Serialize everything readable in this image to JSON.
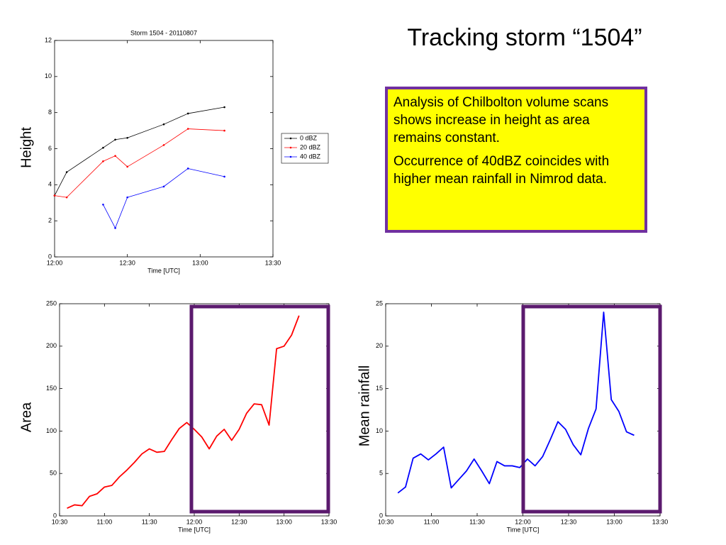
{
  "title": "Tracking storm “1504”",
  "textbox": {
    "paragraphs": [
      "Analysis of Chilbolton volume scans shows increase in height as area remains constant.",
      "Occurrence of 40dBZ coincides with higher mean rainfall in Nimrod data."
    ]
  },
  "chart_data": [
    {
      "type": "line",
      "title": "Storm 1504 - 20110807",
      "xlabel": "Time [UTC]",
      "ylabel": "Height",
      "x": [
        720,
        725,
        740,
        745,
        750,
        765,
        775,
        790
      ],
      "series": [
        {
          "name": "0 dBZ",
          "color": "#000000",
          "values": [
            3.4,
            4.7,
            6.05,
            6.5,
            6.6,
            7.35,
            7.95,
            8.3
          ]
        },
        {
          "name": "20 dBZ",
          "color": "#ff0000",
          "values": [
            3.4,
            3.3,
            5.3,
            5.6,
            5.0,
            6.2,
            7.1,
            7.0
          ]
        },
        {
          "name": "40 dBZ",
          "color": "#0000ff",
          "values": [
            null,
            null,
            2.9,
            1.6,
            3.3,
            3.9,
            4.9,
            4.45
          ]
        }
      ],
      "markers": true,
      "legend": "east-outside",
      "xlim": [
        720,
        810
      ],
      "xticks": [
        {
          "value": 720,
          "label": "12:00"
        },
        {
          "value": 750,
          "label": "12:30"
        },
        {
          "value": 780,
          "label": "13:00"
        },
        {
          "value": 810,
          "label": "13:30"
        }
      ],
      "ylim": [
        0,
        12
      ],
      "yticks": [
        0,
        2,
        4,
        6,
        8,
        10,
        12
      ]
    },
    {
      "type": "line",
      "xlabel": "Time [UTC]",
      "ylabel": "Area",
      "x": [
        635,
        640,
        645,
        650,
        655,
        660,
        665,
        670,
        675,
        680,
        685,
        690,
        695,
        700,
        705,
        710,
        715,
        720,
        725,
        730,
        735,
        740,
        745,
        750,
        755,
        760,
        765,
        770,
        775,
        780,
        785,
        790
      ],
      "series": [
        {
          "color": "#ff0000",
          "values": [
            9,
            13,
            12,
            23,
            26,
            34,
            36,
            46,
            54,
            63,
            73,
            79,
            75,
            76,
            90,
            103,
            110,
            102,
            93,
            79,
            94,
            102,
            89,
            102,
            121,
            132,
            131,
            107,
            197,
            200,
            213,
            236
          ]
        }
      ],
      "xlim": [
        630,
        810
      ],
      "xticks": [
        {
          "value": 630,
          "label": "10:30"
        },
        {
          "value": 660,
          "label": "11:00"
        },
        {
          "value": 690,
          "label": "11:30"
        },
        {
          "value": 720,
          "label": "12:00"
        },
        {
          "value": 750,
          "label": "12:30"
        },
        {
          "value": 780,
          "label": "13:00"
        },
        {
          "value": 810,
          "label": "13:30"
        }
      ],
      "ylim": [
        0,
        250
      ],
      "yticks": [
        0,
        50,
        100,
        150,
        200,
        250
      ]
    },
    {
      "type": "line",
      "xlabel": "Time [UTC]",
      "ylabel": "Mean rainfall",
      "x": [
        638,
        643,
        648,
        653,
        658,
        663,
        668,
        673,
        678,
        683,
        688,
        693,
        698,
        703,
        708,
        713,
        718,
        723,
        728,
        733,
        738,
        743,
        748,
        753,
        758,
        763,
        768,
        773,
        778,
        783,
        788,
        793
      ],
      "series": [
        {
          "color": "#0000ff",
          "values": [
            2.7,
            3.4,
            6.8,
            7.3,
            6.6,
            7.3,
            8.1,
            3.3,
            4.3,
            5.3,
            6.7,
            5.3,
            3.8,
            6.4,
            5.9,
            5.9,
            5.7,
            6.7,
            5.9,
            7.0,
            9.0,
            11.1,
            10.2,
            8.4,
            7.2,
            10.3,
            12.6,
            24.0,
            13.7,
            12.3,
            9.9,
            9.5
          ]
        }
      ],
      "xlim": [
        630,
        810
      ],
      "xticks": [
        {
          "value": 630,
          "label": "10:30"
        },
        {
          "value": 660,
          "label": "11:00"
        },
        {
          "value": 690,
          "label": "11:30"
        },
        {
          "value": 720,
          "label": "12:00"
        },
        {
          "value": 750,
          "label": "12:30"
        },
        {
          "value": 780,
          "label": "13:00"
        },
        {
          "value": 810,
          "label": "13:30"
        }
      ],
      "ylim": [
        0,
        25
      ],
      "yticks": [
        0,
        5,
        10,
        15,
        20,
        25
      ]
    }
  ]
}
